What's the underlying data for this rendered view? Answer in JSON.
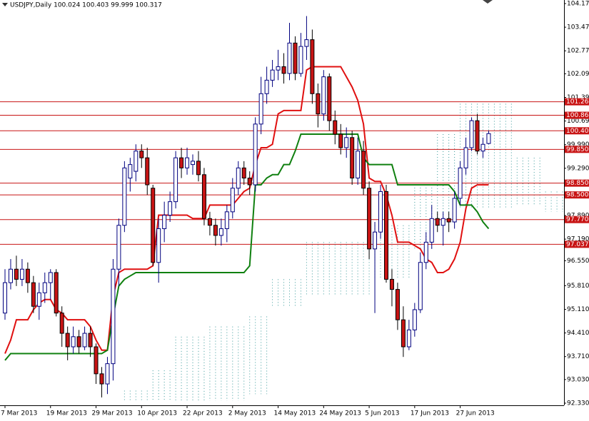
{
  "chart_data": {
    "type": "candlestick",
    "title": "USDJPY,Daily 100.024 100.403 99.999 100.317",
    "categories": [
      "7 Mar 2013",
      null,
      null,
      null,
      null,
      null,
      null,
      null,
      "19 Mar 2013",
      null,
      null,
      null,
      null,
      null,
      null,
      null,
      "29 Mar 2013",
      null,
      null,
      null,
      null,
      null,
      null,
      null,
      "10 Apr 2013",
      null,
      null,
      null,
      null,
      null,
      null,
      null,
      "22 Apr 2013",
      null,
      null,
      null,
      null,
      null,
      null,
      null,
      "2 May 2013",
      null,
      null,
      null,
      null,
      null,
      null,
      null,
      "14 May 2013",
      null,
      null,
      null,
      null,
      null,
      null,
      null,
      "24 May 2013",
      null,
      null,
      null,
      null,
      null,
      null,
      null,
      "5 Jun 2013",
      null,
      null,
      null,
      null,
      null,
      null,
      null,
      "17 Jun 2013",
      null,
      null,
      null,
      null,
      null,
      null,
      null,
      "27 Jun 2013",
      null,
      null,
      null,
      null,
      null
    ],
    "open": [
      95.0,
      95.9,
      96.3,
      96.0,
      96.3,
      95.9,
      95.2,
      95.6,
      95.9,
      96.2,
      95.0,
      94.4,
      94.0,
      94.3,
      94.0,
      94.4,
      94.0,
      93.2,
      92.9,
      93.5,
      96.3,
      97.6,
      99.0,
      99.2,
      99.8,
      99.6,
      98.7,
      96.5,
      97.5,
      97.9,
      98.3,
      99.6,
      99.3,
      99.4,
      99.5,
      99.1,
      97.8,
      97.6,
      97.3,
      97.5,
      98.0,
      98.7,
      99.3,
      99.0,
      98.8,
      100.6,
      101.5,
      101.9,
      102.2,
      102.3,
      102.1,
      103.0,
      102.1,
      102.9,
      103.1,
      101.5,
      100.9,
      102.0,
      100.7,
      100.3,
      99.9,
      100.2,
      99.0,
      99.8,
      98.7,
      96.9,
      97.4,
      98.6,
      96.0,
      95.7,
      94.8,
      94.0,
      94.5,
      95.1,
      96.5,
      97.1,
      97.8,
      97.6,
      97.8,
      97.7,
      98.4,
      99.3,
      99.9,
      100.7,
      99.8,
      100.024
    ],
    "high": [
      96.3,
      96.6,
      96.7,
      96.6,
      96.5,
      96.1,
      95.9,
      96.2,
      96.3,
      96.3,
      95.2,
      94.6,
      94.6,
      94.5,
      94.6,
      94.6,
      94.1,
      93.4,
      93.7,
      96.6,
      97.8,
      99.5,
      99.6,
      100.0,
      100.0,
      99.9,
      98.8,
      97.8,
      98.3,
      98.6,
      99.8,
      99.9,
      99.9,
      99.7,
      99.8,
      99.3,
      98.0,
      97.8,
      97.8,
      98.2,
      99.0,
      99.5,
      99.5,
      99.2,
      100.8,
      102.0,
      102.3,
      102.5,
      102.8,
      102.7,
      103.6,
      103.2,
      103.3,
      103.8,
      103.4,
      101.8,
      102.2,
      102.1,
      101.0,
      100.6,
      100.5,
      100.4,
      100.2,
      100.1,
      98.9,
      97.7,
      98.8,
      98.8,
      96.3,
      95.9,
      95.2,
      94.8,
      95.3,
      96.8,
      97.4,
      98.2,
      98.0,
      98.0,
      98.0,
      98.6,
      99.5,
      100.2,
      100.8,
      100.9,
      100.2,
      100.403
    ],
    "low": [
      94.8,
      95.7,
      95.8,
      95.8,
      95.6,
      95.0,
      94.8,
      95.3,
      95.4,
      94.9,
      94.0,
      93.6,
      93.8,
      93.8,
      93.9,
      93.7,
      92.9,
      92.5,
      92.6,
      93.0,
      95.8,
      97.4,
      98.6,
      98.9,
      99.3,
      98.5,
      96.4,
      95.9,
      97.1,
      97.7,
      98.1,
      99.0,
      99.1,
      99.1,
      98.9,
      97.6,
      97.3,
      97.0,
      97.0,
      97.1,
      97.8,
      98.5,
      98.8,
      98.5,
      98.6,
      100.3,
      101.2,
      101.7,
      101.9,
      101.8,
      101.9,
      101.9,
      102.0,
      102.5,
      101.2,
      100.5,
      100.7,
      100.4,
      100.0,
      99.7,
      99.6,
      98.8,
      98.8,
      98.5,
      96.6,
      95.0,
      97.2,
      95.9,
      95.2,
      94.5,
      93.7,
      93.9,
      94.3,
      95.0,
      96.3,
      96.9,
      97.4,
      97.0,
      97.4,
      97.5,
      98.2,
      99.1,
      99.8,
      99.7,
      99.6,
      99.999
    ],
    "close": [
      95.9,
      96.3,
      96.0,
      96.3,
      95.9,
      95.2,
      95.6,
      95.9,
      96.2,
      95.0,
      94.4,
      94.0,
      94.3,
      94.0,
      94.4,
      94.0,
      93.2,
      92.9,
      93.5,
      96.3,
      97.6,
      99.3,
      99.4,
      99.8,
      99.6,
      98.8,
      96.5,
      97.5,
      97.9,
      98.3,
      99.6,
      99.3,
      99.6,
      99.5,
      99.1,
      97.8,
      97.6,
      97.3,
      97.5,
      98.0,
      98.7,
      99.3,
      99.0,
      98.8,
      100.6,
      101.5,
      101.9,
      102.2,
      102.3,
      102.1,
      103.0,
      102.1,
      102.9,
      103.1,
      101.5,
      100.9,
      102.0,
      100.7,
      100.3,
      99.9,
      100.2,
      99.0,
      99.8,
      98.7,
      96.9,
      97.4,
      98.6,
      96.0,
      95.7,
      94.8,
      94.0,
      94.5,
      95.1,
      96.5,
      97.1,
      97.8,
      97.6,
      97.8,
      97.7,
      98.4,
      99.3,
      99.9,
      100.7,
      99.8,
      100.0,
      100.317
    ],
    "up_color": "#00007f",
    "down_color": "#c81414",
    "lines": [
      {
        "color": "#e01010",
        "values": [
          93.8,
          94.2,
          94.8,
          94.8,
          94.8,
          95.1,
          95.3,
          95.4,
          95.4,
          95.1,
          95.0,
          94.8,
          94.8,
          94.8,
          94.8,
          94.6,
          94.2,
          93.9,
          93.9,
          95.5,
          96.2,
          96.3,
          96.3,
          96.3,
          96.3,
          96.3,
          96.4,
          97.9,
          97.9,
          97.9,
          97.9,
          97.9,
          97.9,
          97.8,
          97.8,
          97.8,
          98.2,
          98.2,
          98.2,
          98.2,
          98.2,
          98.4,
          98.6,
          98.7,
          99.4,
          99.9,
          99.9,
          100.0,
          100.9,
          101.0,
          101.0,
          101.0,
          101.0,
          102.2,
          102.3,
          102.3,
          102.3,
          102.3,
          102.3,
          102.3,
          102.0,
          101.7,
          101.3,
          100.6,
          99.0,
          98.9,
          98.9,
          98.5,
          97.9,
          97.1,
          97.1,
          97.1,
          97.0,
          96.9,
          96.6,
          96.5,
          96.2,
          96.2,
          96.3,
          96.6,
          97.1,
          98.1,
          98.7,
          98.8,
          98.8,
          98.8
        ]
      },
      {
        "color": "#108010",
        "values": [
          93.6,
          93.8,
          93.8,
          93.8,
          93.8,
          93.8,
          93.8,
          93.8,
          93.8,
          93.8,
          93.8,
          93.8,
          93.8,
          93.8,
          93.8,
          93.8,
          93.8,
          93.8,
          93.9,
          94.9,
          95.8,
          96.0,
          96.1,
          96.2,
          96.2,
          96.2,
          96.2,
          96.2,
          96.2,
          96.2,
          96.2,
          96.2,
          96.2,
          96.2,
          96.2,
          96.2,
          96.2,
          96.2,
          96.2,
          96.2,
          96.2,
          96.2,
          96.2,
          96.4,
          98.8,
          98.8,
          99.0,
          99.1,
          99.1,
          99.4,
          99.4,
          99.8,
          100.3,
          100.3,
          100.3,
          100.3,
          100.3,
          100.3,
          100.3,
          100.3,
          100.3,
          100.3,
          100.3,
          99.6,
          99.4,
          99.4,
          99.4,
          99.4,
          99.4,
          98.8,
          98.8,
          98.8,
          98.8,
          98.8,
          98.8,
          98.8,
          98.8,
          98.8,
          98.8,
          98.6,
          98.2,
          98.2,
          98.2,
          98.0,
          97.7,
          97.5
        ]
      }
    ],
    "cloud": {
      "color": "#3a9a9a",
      "upper": [
        null,
        null,
        null,
        null,
        null,
        null,
        null,
        null,
        null,
        null,
        null,
        null,
        null,
        null,
        null,
        null,
        null,
        null,
        null,
        null,
        null,
        92.7,
        92.7,
        92.7,
        92.7,
        92.7,
        93.3,
        93.3,
        93.3,
        93.3,
        94.3,
        94.3,
        94.3,
        94.3,
        94.3,
        94.3,
        94.6,
        94.6,
        94.6,
        94.6,
        94.6,
        94.6,
        94.6,
        94.9,
        94.9,
        94.9,
        94.9,
        96.0,
        96.0,
        96.0,
        96.0,
        96.0,
        96.0,
        97.1,
        97.1,
        97.1,
        97.1,
        97.1,
        97.1,
        97.1,
        97.1,
        97.1,
        97.1,
        97.1,
        97.1,
        97.6,
        97.6,
        97.6,
        97.6,
        97.6,
        97.6,
        97.6,
        98.8,
        98.8,
        98.8,
        98.8,
        100.3,
        100.3,
        100.3,
        100.3,
        101.2,
        101.2,
        101.2,
        101.2,
        101.2,
        101.2,
        101.2,
        101.2,
        101.2,
        101.2,
        99.6,
        99.6,
        99.6,
        99.6,
        99.6,
        98.6,
        98.6,
        98.6,
        98.6
      ],
      "lower": [
        null,
        null,
        null,
        null,
        null,
        null,
        null,
        null,
        null,
        null,
        null,
        null,
        null,
        null,
        null,
        null,
        null,
        null,
        null,
        null,
        null,
        92.4,
        92.4,
        92.4,
        92.4,
        92.4,
        92.4,
        92.4,
        92.4,
        92.4,
        92.4,
        92.4,
        92.4,
        92.4,
        92.4,
        92.4,
        92.4,
        92.4,
        92.4,
        92.4,
        92.4,
        92.4,
        92.4,
        92.6,
        92.6,
        92.6,
        92.6,
        95.2,
        95.2,
        95.2,
        95.2,
        95.2,
        95.2,
        95.5,
        95.5,
        95.5,
        95.5,
        95.5,
        95.5,
        95.5,
        95.5,
        95.5,
        95.5,
        95.5,
        95.5,
        96.0,
        96.0,
        96.0,
        96.0,
        96.0,
        96.0,
        96.0,
        96.9,
        96.9,
        96.9,
        96.9,
        97.8,
        97.8,
        97.8,
        97.8,
        98.1,
        98.1,
        98.1,
        98.1,
        98.1,
        98.1,
        98.1,
        98.1,
        98.1,
        98.1,
        98.2,
        98.2,
        98.2,
        98.2,
        98.2,
        98.0,
        98.0,
        98.0,
        98.0
      ]
    },
    "level_color": "#c81414",
    "levels": [
      {
        "value": 101.26,
        "label": "101.260"
      },
      {
        "value": 100.86,
        "label": "100.860"
      },
      {
        "value": 100.4,
        "label": "100.400"
      },
      {
        "value": 99.85,
        "label": "99.850"
      },
      {
        "value": 98.85,
        "label": "98.850"
      },
      {
        "value": 98.5,
        "label": "98.500"
      },
      {
        "value": 97.77,
        "label": "97.770"
      },
      {
        "value": 97.037,
        "label": "97.037"
      }
    ],
    "ylim": [
      92.33,
      104.17
    ],
    "yticks": [
      {
        "value": 104.17,
        "label": "104.170"
      },
      {
        "value": 103.47,
        "label": "103.470"
      },
      {
        "value": 102.77,
        "label": "102.770"
      },
      {
        "value": 102.09,
        "label": "102.090"
      },
      {
        "value": 101.39,
        "label": "101.390"
      },
      {
        "value": 100.69,
        "label": "100.690"
      },
      {
        "value": 99.99,
        "label": "99.990"
      },
      {
        "value": 99.29,
        "label": "99.290"
      },
      {
        "value": 97.89,
        "label": "97.890"
      },
      {
        "value": 97.19,
        "label": "97.190"
      },
      {
        "value": 96.55,
        "label": "96.550"
      },
      {
        "value": 95.81,
        "label": "95.810"
      },
      {
        "value": 95.11,
        "label": "95.110"
      },
      {
        "value": 94.41,
        "label": "94.410"
      },
      {
        "value": 93.71,
        "label": "93.710"
      },
      {
        "value": 93.03,
        "label": "93.030"
      },
      {
        "value": 92.33,
        "label": "92.330"
      }
    ]
  }
}
